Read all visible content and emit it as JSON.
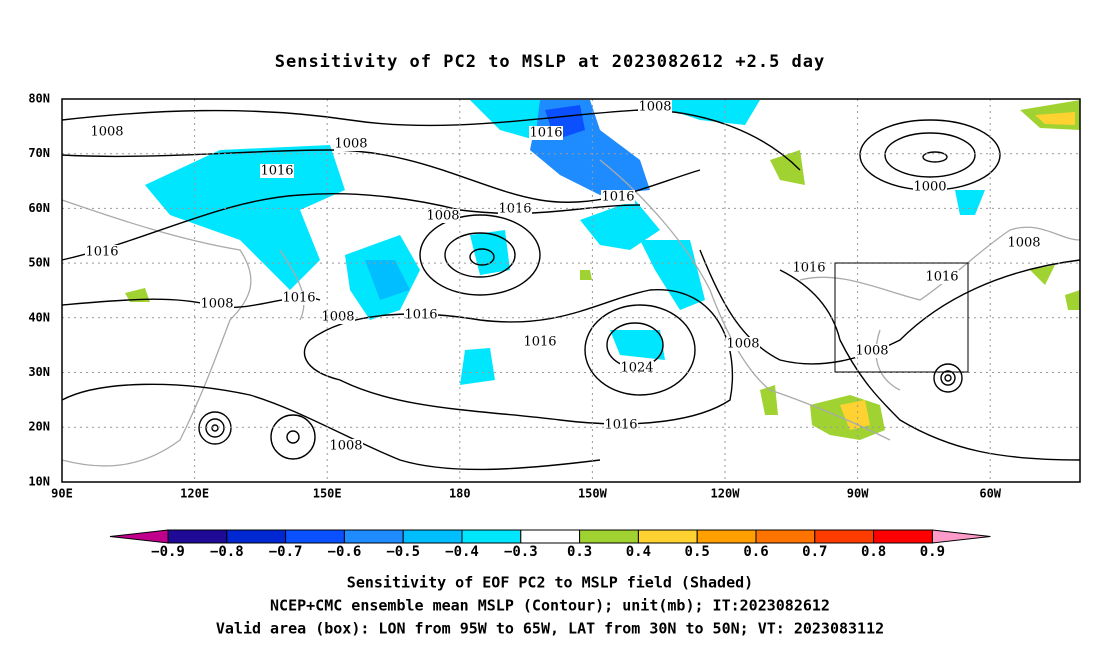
{
  "title": "Sensitivity of PC2 to MSLP at 2023082612 +2.5 day",
  "lat_labels": [
    "80N",
    "70N",
    "60N",
    "50N",
    "40N",
    "30N",
    "20N",
    "10N"
  ],
  "lon_labels": [
    "90E",
    "120E",
    "150E",
    "180",
    "150W",
    "120W",
    "90W",
    "60W"
  ],
  "contour_labels": [
    "1008",
    "1008",
    "1008",
    "1016",
    "1016",
    "1000",
    "1008",
    "1016",
    "1016",
    "1008",
    "1016",
    "1016",
    "1016",
    "1016",
    "1008",
    "1008",
    "1016",
    "1016",
    "1008",
    "1008",
    "1024",
    "1016",
    "1008"
  ],
  "colorbar": {
    "labels": [
      "−0.9",
      "−0.8",
      "−0.7",
      "−0.6",
      "−0.5",
      "−0.4",
      "−0.3",
      "0.3",
      "0.4",
      "0.5",
      "0.6",
      "0.7",
      "0.8",
      "0.9"
    ],
    "colors": [
      "#c0008c",
      "#1e0a96",
      "#0028d2",
      "#0a50ff",
      "#1e8cff",
      "#00beff",
      "#00e6ff",
      "#ffffff",
      "#a0d232",
      "#ffd232",
      "#ffa000",
      "#ff7300",
      "#ff3c00",
      "#ff0000",
      "#ff9bc8"
    ]
  },
  "footer": [
    "Sensitivity of EOF PC2 to MSLP field (Shaded)",
    "NCEP+CMC ensemble mean MSLP (Contour); unit(mb); IT:2023082612",
    "Valid area (box): LON from 95W to 65W, LAT from 30N to 50N; VT: 2023083112"
  ]
}
